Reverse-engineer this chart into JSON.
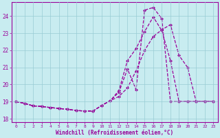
{
  "background_color": "#c8ecf0",
  "grid_color": "#98ccd4",
  "line_color": "#990099",
  "xlabel": "Windchill (Refroidissement éolien,°C)",
  "xlim_min": -0.5,
  "xlim_max": 23.5,
  "ylim_min": 17.8,
  "ylim_max": 24.8,
  "yticks": [
    18,
    19,
    20,
    21,
    22,
    23,
    24
  ],
  "xticks": [
    0,
    1,
    2,
    3,
    4,
    5,
    6,
    7,
    8,
    9,
    10,
    11,
    12,
    13,
    14,
    15,
    16,
    17,
    18,
    19,
    20,
    21,
    22,
    23
  ],
  "line1_x": [
    0,
    1,
    2,
    3,
    4,
    5,
    6,
    7,
    8,
    9,
    10,
    11,
    12,
    13,
    14,
    15,
    16,
    17,
    18,
    19,
    20,
    21,
    22,
    23
  ],
  "line1_y": [
    19.0,
    18.9,
    18.75,
    18.72,
    18.65,
    18.6,
    18.55,
    18.48,
    18.45,
    18.45,
    18.78,
    19.05,
    19.55,
    20.9,
    19.7,
    24.35,
    24.5,
    23.85,
    19.0,
    19.0,
    19.0,
    19.0,
    19.0,
    19.0
  ],
  "line2_x": [
    0,
    1,
    2,
    3,
    4,
    5,
    6,
    7,
    8,
    9,
    10,
    11,
    12,
    13,
    14,
    15,
    16,
    17,
    18,
    19,
    20,
    21,
    22,
    23
  ],
  "line2_y": [
    19.0,
    18.9,
    18.75,
    18.72,
    18.65,
    18.6,
    18.55,
    18.48,
    18.45,
    18.45,
    18.78,
    19.05,
    19.3,
    19.8,
    20.8,
    22.0,
    22.8,
    23.2,
    23.5,
    21.7,
    21.0,
    19.0,
    19.0,
    19.0
  ],
  "line3_x": [
    0,
    1,
    2,
    3,
    4,
    5,
    6,
    7,
    8,
    9,
    10,
    11,
    12,
    13,
    14,
    15,
    16,
    17,
    18,
    19,
    20,
    21,
    22,
    23
  ],
  "line3_y": [
    19.0,
    18.9,
    18.75,
    18.72,
    18.65,
    18.6,
    18.55,
    18.48,
    18.45,
    18.45,
    18.78,
    19.05,
    19.65,
    21.4,
    22.1,
    23.1,
    23.95,
    23.15,
    21.4,
    19.0,
    19.0,
    19.0,
    19.0,
    19.0
  ]
}
